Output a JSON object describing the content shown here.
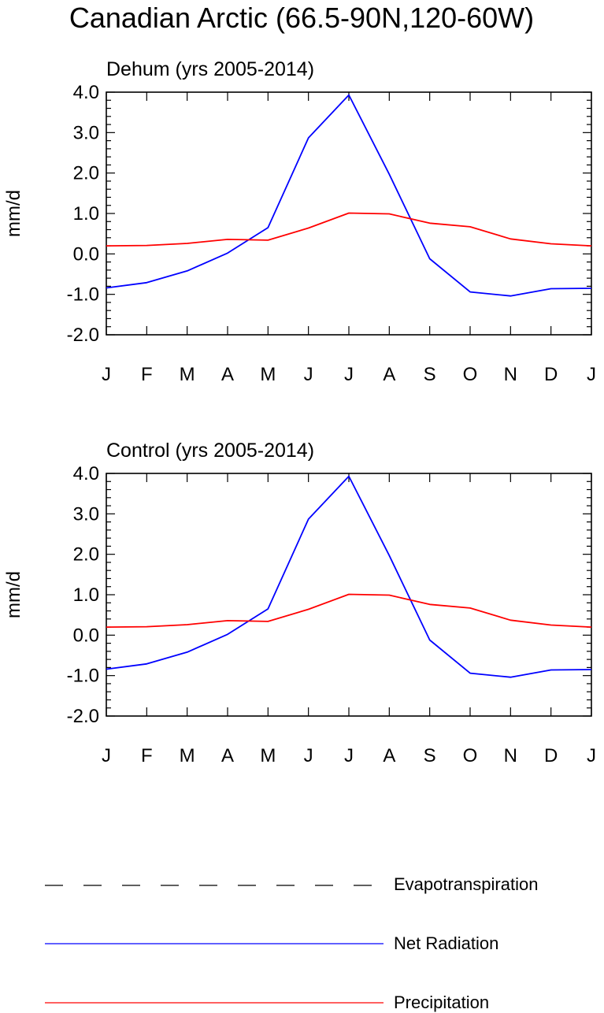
{
  "figure_title": "Canadian Arctic (66.5-90N,120-60W)",
  "legend": {
    "entries": [
      {
        "label": "Evapotranspiration",
        "color": "#000000",
        "dash": "dashed"
      },
      {
        "label": "Net Radiation",
        "color": "#0000ff",
        "dash": "solid"
      },
      {
        "label": "Precipitation",
        "color": "#ff0000",
        "dash": "solid"
      }
    ]
  },
  "chart_data": [
    {
      "type": "line",
      "title": "Dehum (yrs 2005-2014)",
      "xlabel": "",
      "ylabel": "mm/d",
      "x": [
        "J",
        "F",
        "M",
        "A",
        "M",
        "J",
        "J",
        "A",
        "S",
        "O",
        "N",
        "D",
        "J"
      ],
      "ylim": [
        -2.0,
        4.0
      ],
      "yticks": [
        "4.0",
        "3.0",
        "2.0",
        "1.0",
        "0.0",
        "-1.0",
        "-2.0"
      ],
      "grid": false,
      "series": [
        {
          "name": "Net Radiation",
          "color": "#0000ff",
          "values": [
            -0.84,
            -0.71,
            -0.42,
            0.02,
            0.65,
            2.87,
            3.93,
            1.97,
            -0.12,
            -0.94,
            -1.04,
            -0.86,
            -0.85
          ]
        },
        {
          "name": "Precipitation",
          "color": "#ff0000",
          "values": [
            0.2,
            0.21,
            0.26,
            0.36,
            0.34,
            0.64,
            1.01,
            0.99,
            0.76,
            0.67,
            0.37,
            0.25,
            0.2
          ]
        }
      ]
    },
    {
      "type": "line",
      "title": "Control (yrs 2005-2014)",
      "xlabel": "",
      "ylabel": "mm/d",
      "x": [
        "J",
        "F",
        "M",
        "A",
        "M",
        "J",
        "J",
        "A",
        "S",
        "O",
        "N",
        "D",
        "J"
      ],
      "ylim": [
        -2.0,
        4.0
      ],
      "yticks": [
        "4.0",
        "3.0",
        "2.0",
        "1.0",
        "0.0",
        "-1.0",
        "-2.0"
      ],
      "grid": false,
      "series": [
        {
          "name": "Net Radiation",
          "color": "#0000ff",
          "values": [
            -0.84,
            -0.71,
            -0.42,
            0.02,
            0.65,
            2.87,
            3.93,
            1.97,
            -0.12,
            -0.94,
            -1.04,
            -0.86,
            -0.85
          ]
        },
        {
          "name": "Precipitation",
          "color": "#ff0000",
          "values": [
            0.2,
            0.21,
            0.26,
            0.36,
            0.34,
            0.64,
            1.01,
            0.99,
            0.76,
            0.67,
            0.37,
            0.25,
            0.2
          ]
        }
      ]
    }
  ]
}
